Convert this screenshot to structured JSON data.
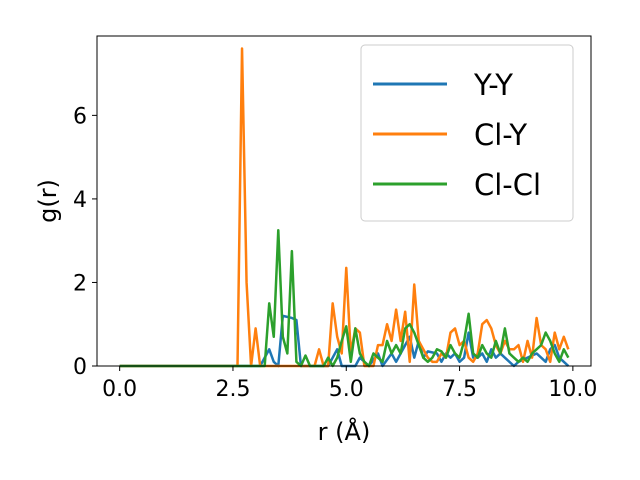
{
  "chart_data": {
    "type": "line",
    "xlabel": "r (Å)",
    "ylabel": "g(r)",
    "xlim": [
      -0.5,
      10.4
    ],
    "ylim": [
      0,
      7.9
    ],
    "xticks": [
      "0.0",
      "2.5",
      "5.0",
      "7.5",
      "10.0"
    ],
    "yticks": [
      "0",
      "2",
      "4",
      "6"
    ],
    "grid": false,
    "legend_position": "top-right",
    "series": [
      {
        "name": "Y-Y",
        "color": "#1f77b4",
        "points": [
          [
            0.0,
            0
          ],
          [
            3.1,
            0
          ],
          [
            3.3,
            0.4
          ],
          [
            3.4,
            0.1
          ],
          [
            3.5,
            0
          ],
          [
            3.6,
            1.2
          ],
          [
            3.8,
            1.15
          ],
          [
            3.9,
            1.1
          ],
          [
            4.0,
            0
          ],
          [
            4.6,
            0
          ],
          [
            4.8,
            0.4
          ],
          [
            4.9,
            0
          ],
          [
            5.2,
            0
          ],
          [
            5.3,
            0.2
          ],
          [
            5.5,
            0
          ],
          [
            5.7,
            0.3
          ],
          [
            5.8,
            0
          ],
          [
            6.0,
            0.3
          ],
          [
            6.1,
            0.1
          ],
          [
            6.3,
            0.5
          ],
          [
            6.4,
            0.7
          ],
          [
            6.5,
            0.2
          ],
          [
            6.6,
            0.6
          ],
          [
            6.7,
            0.2
          ],
          [
            6.8,
            0.35
          ],
          [
            7.0,
            0.3
          ],
          [
            7.1,
            0.1
          ],
          [
            7.2,
            0.3
          ],
          [
            7.3,
            0.2
          ],
          [
            7.4,
            0.3
          ],
          [
            7.5,
            0.1
          ],
          [
            7.6,
            0.2
          ],
          [
            7.7,
            0.8
          ],
          [
            7.8,
            0.2
          ],
          [
            7.9,
            0.2
          ],
          [
            8.0,
            0.3
          ],
          [
            8.1,
            0.1
          ],
          [
            8.2,
            0.4
          ],
          [
            8.3,
            0.2
          ],
          [
            8.4,
            0.3
          ],
          [
            8.5,
            0.2
          ],
          [
            8.7,
            0
          ],
          [
            8.8,
            0.1
          ],
          [
            9.0,
            0.2
          ],
          [
            9.2,
            0.3
          ],
          [
            9.4,
            0.1
          ],
          [
            9.5,
            0.4
          ],
          [
            9.6,
            0.5
          ],
          [
            9.7,
            0.2
          ],
          [
            9.8,
            0.1
          ],
          [
            9.9,
            0
          ]
        ]
      },
      {
        "name": "Cl-Y",
        "color": "#ff7f0e",
        "points": [
          [
            0.0,
            0
          ],
          [
            2.6,
            0
          ],
          [
            2.7,
            7.6
          ],
          [
            2.8,
            2.0
          ],
          [
            2.9,
            0
          ],
          [
            3.0,
            0.9
          ],
          [
            3.1,
            0
          ],
          [
            4.3,
            0
          ],
          [
            4.4,
            0.4
          ],
          [
            4.5,
            0
          ],
          [
            4.6,
            0
          ],
          [
            4.7,
            1.5
          ],
          [
            4.8,
            0.7
          ],
          [
            4.9,
            0.3
          ],
          [
            5.0,
            2.35
          ],
          [
            5.1,
            0.3
          ],
          [
            5.2,
            0.9
          ],
          [
            5.3,
            0.8
          ],
          [
            5.4,
            0
          ],
          [
            5.6,
            0
          ],
          [
            5.7,
            0.5
          ],
          [
            5.8,
            0.5
          ],
          [
            5.9,
            1.0
          ],
          [
            6.0,
            0.6
          ],
          [
            6.1,
            1.35
          ],
          [
            6.2,
            0.6
          ],
          [
            6.3,
            1.3
          ],
          [
            6.4,
            0.1
          ],
          [
            6.5,
            1.95
          ],
          [
            6.6,
            0.6
          ],
          [
            6.7,
            0.4
          ],
          [
            6.8,
            0.2
          ],
          [
            6.9,
            0.1
          ],
          [
            7.0,
            0.1
          ],
          [
            7.1,
            0.3
          ],
          [
            7.2,
            0.2
          ],
          [
            7.3,
            0.8
          ],
          [
            7.4,
            0.9
          ],
          [
            7.5,
            0.5
          ],
          [
            7.6,
            0.6
          ],
          [
            7.7,
            0.2
          ],
          [
            7.8,
            0.1
          ],
          [
            7.9,
            0.3
          ],
          [
            8.0,
            1.0
          ],
          [
            8.1,
            1.1
          ],
          [
            8.2,
            0.9
          ],
          [
            8.3,
            0.5
          ],
          [
            8.4,
            0.3
          ],
          [
            8.5,
            0.6
          ],
          [
            8.6,
            0.4
          ],
          [
            8.7,
            0.4
          ],
          [
            8.8,
            0.5
          ],
          [
            8.9,
            0.1
          ],
          [
            9.0,
            0.6
          ],
          [
            9.1,
            0.2
          ],
          [
            9.2,
            1.15
          ],
          [
            9.3,
            0.5
          ],
          [
            9.4,
            0.4
          ],
          [
            9.5,
            0.1
          ],
          [
            9.6,
            0.8
          ],
          [
            9.7,
            0.4
          ],
          [
            9.8,
            0.7
          ],
          [
            9.9,
            0.4
          ]
        ]
      },
      {
        "name": "Cl-Cl",
        "color": "#2ca02c",
        "points": [
          [
            0.0,
            0
          ],
          [
            3.2,
            0
          ],
          [
            3.3,
            1.5
          ],
          [
            3.4,
            0.7
          ],
          [
            3.5,
            3.25
          ],
          [
            3.6,
            0.7
          ],
          [
            3.7,
            0.3
          ],
          [
            3.8,
            2.75
          ],
          [
            3.9,
            0.1
          ],
          [
            4.0,
            0
          ],
          [
            4.1,
            0.25
          ],
          [
            4.2,
            0
          ],
          [
            4.5,
            0
          ],
          [
            4.6,
            0.2
          ],
          [
            4.7,
            0
          ],
          [
            4.8,
            0.2
          ],
          [
            4.9,
            0.6
          ],
          [
            5.0,
            0.95
          ],
          [
            5.1,
            0.1
          ],
          [
            5.2,
            0.9
          ],
          [
            5.3,
            0.3
          ],
          [
            5.4,
            0.1
          ],
          [
            5.5,
            0
          ],
          [
            5.6,
            0.3
          ],
          [
            5.7,
            0.2
          ],
          [
            5.8,
            0.1
          ],
          [
            5.9,
            0.6
          ],
          [
            6.0,
            0.3
          ],
          [
            6.1,
            0.5
          ],
          [
            6.2,
            0.3
          ],
          [
            6.3,
            0.9
          ],
          [
            6.4,
            1.0
          ],
          [
            6.5,
            0.8
          ],
          [
            6.6,
            0.5
          ],
          [
            6.7,
            0.2
          ],
          [
            6.8,
            0.1
          ],
          [
            6.9,
            0.2
          ],
          [
            7.0,
            0.4
          ],
          [
            7.1,
            0.35
          ],
          [
            7.2,
            0.2
          ],
          [
            7.3,
            0.5
          ],
          [
            7.4,
            0.3
          ],
          [
            7.5,
            0.2
          ],
          [
            7.6,
            0.6
          ],
          [
            7.7,
            1.25
          ],
          [
            7.8,
            0.3
          ],
          [
            7.9,
            0.2
          ],
          [
            8.0,
            0.5
          ],
          [
            8.1,
            0.3
          ],
          [
            8.2,
            0.2
          ],
          [
            8.3,
            0.6
          ],
          [
            8.4,
            0.3
          ],
          [
            8.5,
            0.9
          ],
          [
            8.6,
            0.3
          ],
          [
            8.7,
            0.2
          ],
          [
            8.8,
            0.1
          ],
          [
            8.9,
            0.2
          ],
          [
            9.0,
            0.1
          ],
          [
            9.1,
            0.3
          ],
          [
            9.2,
            0.4
          ],
          [
            9.3,
            0.5
          ],
          [
            9.4,
            0.8
          ],
          [
            9.5,
            0.6
          ],
          [
            9.6,
            0.3
          ],
          [
            9.7,
            0.1
          ],
          [
            9.8,
            0.4
          ],
          [
            9.9,
            0.2
          ]
        ]
      }
    ]
  }
}
